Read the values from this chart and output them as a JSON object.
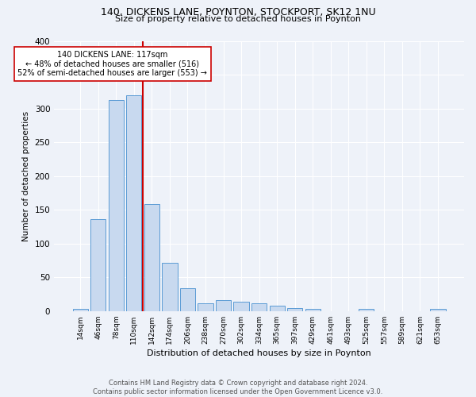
{
  "title1": "140, DICKENS LANE, POYNTON, STOCKPORT, SK12 1NU",
  "title2": "Size of property relative to detached houses in Poynton",
  "xlabel": "Distribution of detached houses by size in Poynton",
  "ylabel": "Number of detached properties",
  "bin_labels": [
    "14sqm",
    "46sqm",
    "78sqm",
    "110sqm",
    "142sqm",
    "174sqm",
    "206sqm",
    "238sqm",
    "270sqm",
    "302sqm",
    "334sqm",
    "365sqm",
    "397sqm",
    "429sqm",
    "461sqm",
    "493sqm",
    "525sqm",
    "557sqm",
    "589sqm",
    "621sqm",
    "653sqm"
  ],
  "bin_values": [
    3,
    136,
    312,
    320,
    158,
    71,
    34,
    12,
    16,
    14,
    12,
    8,
    5,
    3,
    0,
    0,
    3,
    0,
    0,
    0,
    3
  ],
  "bar_color": "#c8d9ef",
  "bar_edge_color": "#5b9bd5",
  "vline_x": 3.5,
  "vline_color": "#cc0000",
  "annotation_text": "140 DICKENS LANE: 117sqm\n← 48% of detached houses are smaller (516)\n52% of semi-detached houses are larger (553) →",
  "annotation_box_color": "white",
  "annotation_box_edge": "#cc0000",
  "footer": "Contains HM Land Registry data © Crown copyright and database right 2024.\nContains public sector information licensed under the Open Government Licence v3.0.",
  "ylim": [
    0,
    400
  ],
  "yticks": [
    0,
    50,
    100,
    150,
    200,
    250,
    300,
    350,
    400
  ],
  "bg_color": "#eef2f9",
  "grid_color": "white"
}
